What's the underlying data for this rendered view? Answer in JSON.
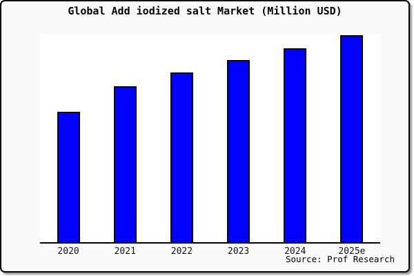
{
  "figure": {
    "title": "Global Add iodized salt Market (Million USD)",
    "source_note": "Source: Prof Research"
  },
  "chart_data": {
    "type": "bar",
    "title": "Global Add iodized salt Market (Million USD)",
    "categories": [
      "2020",
      "2021",
      "2022",
      "2023",
      "2024",
      "2025e"
    ],
    "values": [
      189,
      226,
      246,
      264,
      281,
      300
    ],
    "value_scale": "relative-pixel-height; y-axis has no tick labels",
    "xlabel": "",
    "ylabel": "",
    "ylim": [
      0,
      302
    ],
    "grid": false,
    "legend": "none",
    "annotations": [
      "Source: Prof Research"
    ],
    "bar_color": "#0101fd",
    "bar_edge_color": "#000000"
  },
  "colors": {
    "figure_background": "#fafafa",
    "plot_background": "#ffffff",
    "bar_fill": "#0101fd",
    "bar_border": "#000000",
    "axis_line": "#000000",
    "frame_border": "#000000",
    "shadow": "#9c9c9c",
    "text": "#000000"
  }
}
